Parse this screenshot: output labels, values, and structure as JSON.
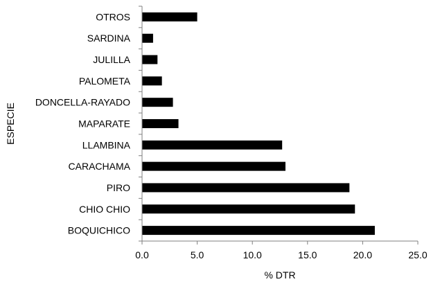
{
  "chart_data": {
    "type": "bar",
    "orientation": "horizontal",
    "categories": [
      "BOQUICHICO",
      "CHIO CHIO",
      "PIRO",
      "CARACHAMA",
      "LLAMBINA",
      "MAPARATE",
      "DONCELLA-RAYADO",
      "PALOMETA",
      "JULILLA",
      "SARDINA",
      "OTROS"
    ],
    "values": [
      21.1,
      19.3,
      18.8,
      13.0,
      12.7,
      3.3,
      2.8,
      1.8,
      1.4,
      1.0,
      5.0
    ],
    "title": "",
    "xlabel": "% DTR",
    "ylabel": "ESPECIE",
    "xlim": [
      0,
      25
    ],
    "xticks": [
      "0.0",
      "5.0",
      "10.0",
      "15.0",
      "20.0",
      "25.0"
    ],
    "xtick_values": [
      0,
      5,
      10,
      15,
      20,
      25
    ],
    "grid": false,
    "legend": "none",
    "bar_color": "#000000"
  }
}
